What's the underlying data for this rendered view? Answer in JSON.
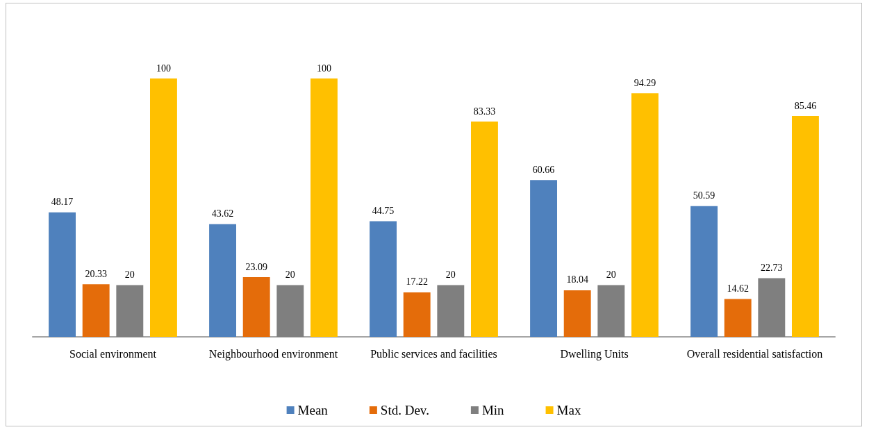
{
  "chart_data": {
    "type": "bar",
    "categories": [
      "Social environment",
      "Neighbourhood environment",
      "Public services and facilities",
      "Dwelling Units",
      "Overall residential satisfaction"
    ],
    "series": [
      {
        "name": "Mean",
        "color": "#4f81bd",
        "values": [
          48.17,
          43.62,
          44.75,
          60.66,
          50.59
        ]
      },
      {
        "name": "Std. Dev.",
        "color": "#e46c0a",
        "values": [
          20.33,
          23.09,
          17.22,
          18.04,
          14.62
        ]
      },
      {
        "name": "Min",
        "color": "#7f7f7f",
        "values": [
          20,
          20,
          20,
          20,
          22.73
        ]
      },
      {
        "name": "Max",
        "color": "#ffc000",
        "values": [
          100,
          100,
          83.33,
          94.29,
          85.46
        ]
      }
    ],
    "data_labels": true,
    "legend": "bottom"
  }
}
